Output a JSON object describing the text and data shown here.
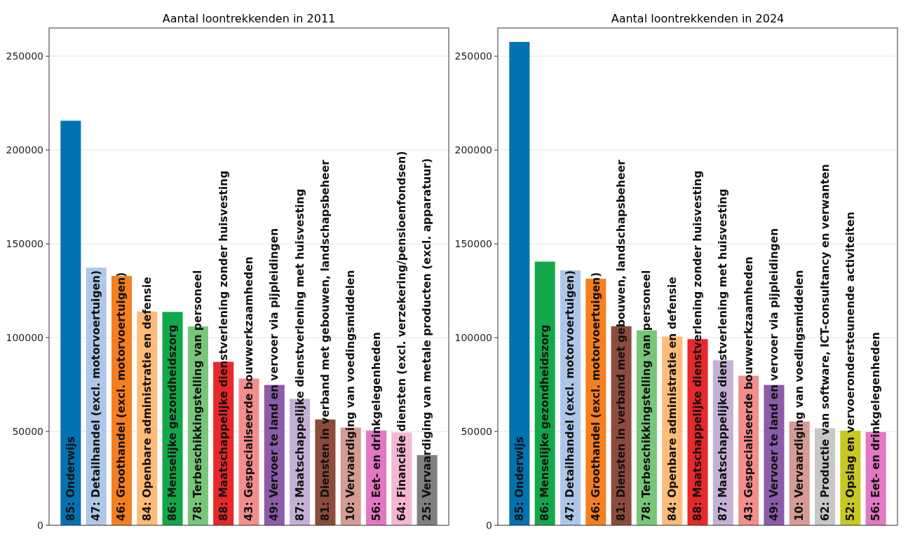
{
  "chart_data": [
    {
      "type": "bar",
      "title": "Aantal loontrekkenden in 2011",
      "categories": [
        "85: Onderwijs",
        "47: Detailhandel (excl. motorvoertuigen)",
        "46: Groothandel (excl. motorvoertuigen)",
        "84: Openbare administratie en defensie",
        "86: Menselijke gezondheidszorg",
        "78: Terbeschikkingstelling van personeel",
        "88: Maatschappelijke dienstverlening zonder huisvesting",
        "43: Gespecialiseerde bouwwerkzaamheden",
        "49: Vervoer te land en vervoer via pijpleidingen",
        "87: Maatschappelijke dienstverlening met huisvesting",
        "81: Diensten in verband met gebouwen, landschapsbeheer",
        "10: Vervaardiging van voedingsmiddelen",
        "56: Eet- en drinkgelegenheden",
        "64: Financiële diensten (excl. verzekering/pensioenfondsen)",
        "25: Vervaardiging van metale producten (excl. apparatuur)"
      ],
      "values": [
        215600,
        137300,
        132900,
        113900,
        113700,
        106000,
        87100,
        78200,
        74800,
        67400,
        56400,
        52100,
        50500,
        49500,
        37400
      ],
      "colors": [
        "#0173b2",
        "#aec7e8",
        "#f57f20",
        "#ffbb78",
        "#12a84a",
        "#78c67a",
        "#e8282a",
        "#f28e8c",
        "#8c5ca8",
        "#c5b0d5",
        "#8c4b3c",
        "#d49c94",
        "#e377c2",
        "#f7b6d2",
        "#7f7f7f"
      ],
      "ylim": [
        0,
        265000
      ],
      "yticks": [
        0,
        50000,
        100000,
        150000,
        200000,
        250000
      ],
      "grid": "y"
    },
    {
      "type": "bar",
      "title": "Aantal loontrekkenden in 2024",
      "categories": [
        "85: Onderwijs",
        "86: Menselijke gezondheidszorg",
        "47: Detailhandel (excl. motorvoertuigen)",
        "46: Groothandel (excl. motorvoertuigen)",
        "81: Diensten in verband met gebouwen, landschapsbeheer",
        "78: Terbeschikkingstelling van personeel",
        "84: Openbare administratie en defensie",
        "88: Maatschappelijke dienstverlening zonder huisvesting",
        "87: Maatschappelijke dienstverlening met huisvesting",
        "43: Gespecialiseerde bouwwerkzaamheden",
        "49: Vervoer te land en vervoer via pijpleidingen",
        "10: Vervaardiging van voedingsmiddelen",
        "62: Productie van software, ICT-consultancy en verwanten",
        "52: Opslag en vervoerondersteunende activiteiten",
        "56: Eet- en drinkgelegenheden"
      ],
      "values": [
        257600,
        140500,
        135900,
        131400,
        106100,
        103900,
        100600,
        99200,
        87900,
        79700,
        74800,
        55300,
        51700,
        50400,
        49700
      ],
      "colors": [
        "#0173b2",
        "#12a84a",
        "#aec7e8",
        "#f57f20",
        "#8c4b3c",
        "#78c67a",
        "#ffbb78",
        "#e8282a",
        "#c5b0d5",
        "#f28e8c",
        "#8c5ca8",
        "#d49c94",
        "#c7c7c7",
        "#c8c822",
        "#e377c2"
      ],
      "ylim": [
        0,
        265000
      ],
      "yticks": [
        0,
        50000,
        100000,
        150000,
        200000,
        250000
      ],
      "grid": "y"
    }
  ]
}
